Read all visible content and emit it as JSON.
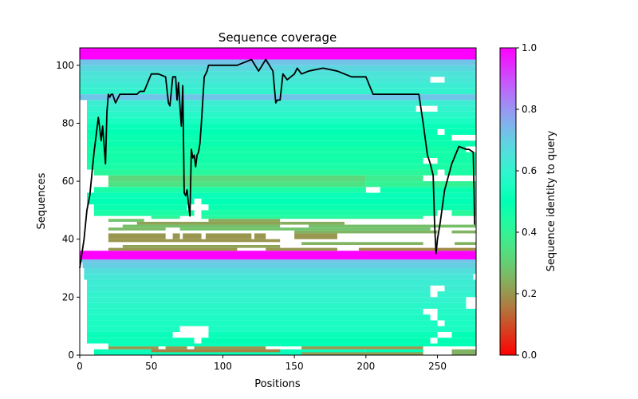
{
  "chart_data": {
    "type": "heatmap",
    "title": "Sequence coverage",
    "xlabel": "Positions",
    "ylabel": "Sequences",
    "xlim": [
      0,
      277
    ],
    "ylim": [
      0,
      106
    ],
    "xticks": [
      0,
      50,
      100,
      150,
      200,
      250
    ],
    "yticks": [
      0,
      20,
      40,
      60,
      80,
      100
    ],
    "grid": false,
    "colorbar": {
      "label": "Sequence identity to query",
      "range": [
        0.0,
        1.0
      ],
      "ticks": [
        "0.0",
        "0.2",
        "0.4",
        "0.6",
        "0.8",
        "1.0"
      ],
      "colormap": "rainbow_r"
    },
    "coverage_line": {
      "color": "#000000",
      "x": [
        0,
        3,
        5,
        7,
        10,
        13,
        15,
        16,
        18,
        19,
        20,
        21,
        22,
        23,
        25,
        28,
        30,
        35,
        40,
        42,
        45,
        50,
        55,
        60,
        62,
        63,
        64,
        65,
        67,
        68,
        69,
        70,
        71,
        72,
        73,
        74,
        75,
        76,
        77,
        78,
        79,
        80,
        81,
        82,
        83,
        84,
        85,
        87,
        89,
        90,
        95,
        100,
        105,
        110,
        115,
        120,
        125,
        130,
        135,
        137,
        138,
        140,
        142,
        145,
        150,
        152,
        155,
        160,
        170,
        180,
        190,
        200,
        205,
        210,
        220,
        230,
        237,
        240,
        243,
        245,
        247,
        248,
        249,
        250,
        252,
        255,
        260,
        265,
        270,
        272,
        275,
        276
      ],
      "y": [
        30,
        40,
        50,
        55,
        70,
        82,
        74,
        79,
        66,
        84,
        90,
        89,
        90,
        90,
        87,
        90,
        90,
        90,
        90,
        91,
        91,
        97,
        97,
        96,
        87,
        86,
        91,
        96,
        96,
        88,
        94,
        86,
        79,
        93,
        56,
        55,
        57,
        52,
        48,
        71,
        68,
        69,
        65,
        69,
        70,
        73,
        80,
        96,
        98,
        100,
        100,
        100,
        100,
        100,
        101,
        102,
        98,
        102,
        98,
        87,
        88,
        88,
        97,
        95,
        97,
        99,
        97,
        98,
        99,
        98,
        96,
        96,
        90,
        90,
        90,
        90,
        90,
        80,
        69,
        66,
        62,
        45,
        35,
        40,
        46,
        57,
        66,
        72,
        71,
        71,
        70,
        45
      ]
    },
    "rows": [
      {
        "y0": 0,
        "y1": 2,
        "segments": [
          [
            15,
            200,
            0.52
          ],
          [
            200,
            240,
            0.5
          ],
          [
            260,
            277,
            0.25
          ]
        ]
      },
      {
        "y0": 0,
        "y1": 2,
        "segments": [
          [
            10,
            15,
            0.5
          ]
        ]
      },
      {
        "y0": 0,
        "y1": 1,
        "segments": [
          [
            155,
            240,
            0.22
          ]
        ]
      },
      {
        "y0": 1,
        "y1": 2,
        "segments": [
          [
            50,
            140,
            0.17
          ]
        ]
      },
      {
        "y0": 2,
        "y1": 3,
        "segments": [
          [
            20,
            55,
            0.2
          ],
          [
            60,
            75,
            0.2
          ],
          [
            80,
            130,
            0.2
          ],
          [
            155,
            240,
            0.2
          ]
        ]
      },
      {
        "y0": 3,
        "y1": 4,
        "segments": [
          [
            20,
            140,
            0.52
          ],
          [
            140,
            277,
            0.5
          ]
        ]
      },
      {
        "y0": 4,
        "y1": 6,
        "segments": [
          [
            5,
            80,
            0.52
          ],
          [
            85,
            245,
            0.5
          ],
          [
            250,
            277,
            0.5
          ]
        ]
      },
      {
        "y0": 6,
        "y1": 8,
        "segments": [
          [
            5,
            65,
            0.52
          ],
          [
            90,
            250,
            0.52
          ],
          [
            260,
            277,
            0.5
          ]
        ]
      },
      {
        "y0": 8,
        "y1": 10,
        "segments": [
          [
            5,
            70,
            0.55
          ],
          [
            90,
            277,
            0.55
          ]
        ]
      },
      {
        "y0": 10,
        "y1": 12,
        "segments": [
          [
            5,
            250,
            0.55
          ],
          [
            255,
            277,
            0.55
          ]
        ]
      },
      {
        "y0": 12,
        "y1": 14,
        "segments": [
          [
            5,
            245,
            0.56
          ],
          [
            250,
            277,
            0.56
          ]
        ]
      },
      {
        "y0": 14,
        "y1": 16,
        "segments": [
          [
            5,
            240,
            0.57
          ],
          [
            250,
            277,
            0.57
          ]
        ]
      },
      {
        "y0": 16,
        "y1": 18,
        "segments": [
          [
            5,
            270,
            0.58
          ]
        ]
      },
      {
        "y0": 18,
        "y1": 20,
        "segments": [
          [
            5,
            270,
            0.6
          ]
        ]
      },
      {
        "y0": 20,
        "y1": 22,
        "segments": [
          [
            5,
            245,
            0.6
          ],
          [
            250,
            277,
            0.6
          ]
        ]
      },
      {
        "y0": 22,
        "y1": 24,
        "segments": [
          [
            5,
            245,
            0.62
          ],
          [
            255,
            277,
            0.62
          ]
        ]
      },
      {
        "y0": 24,
        "y1": 26,
        "segments": [
          [
            5,
            250,
            0.62
          ],
          [
            250,
            277,
            0.62
          ]
        ]
      },
      {
        "y0": 26,
        "y1": 28,
        "segments": [
          [
            3,
            275,
            0.64
          ]
        ]
      },
      {
        "y0": 28,
        "y1": 30,
        "segments": [
          [
            3,
            277,
            0.66
          ]
        ]
      },
      {
        "y0": 30,
        "y1": 32,
        "segments": [
          [
            2,
            277,
            0.7
          ]
        ]
      },
      {
        "y0": 32,
        "y1": 33,
        "segments": [
          [
            1,
            277,
            0.72
          ]
        ]
      },
      {
        "y0": 33,
        "y1": 36,
        "segments": [
          [
            0,
            277,
            1.0
          ]
        ]
      },
      {
        "y0": 36,
        "y1": 37,
        "segments": [
          [
            20,
            110,
            0.2
          ],
          [
            130,
            180,
            0.2
          ],
          [
            195,
            277,
            0.18
          ]
        ]
      },
      {
        "y0": 37,
        "y1": 38,
        "segments": [
          [
            30,
            140,
            0.22
          ]
        ]
      },
      {
        "y0": 38,
        "y1": 39,
        "segments": [
          [
            155,
            240,
            0.25
          ],
          [
            262,
            277,
            0.25
          ]
        ]
      },
      {
        "y0": 39,
        "y1": 40,
        "segments": [
          [
            20,
            140,
            0.2
          ]
        ]
      },
      {
        "y0": 40,
        "y1": 42,
        "segments": [
          [
            20,
            60,
            0.2
          ],
          [
            65,
            70,
            0.2
          ],
          [
            72,
            85,
            0.2
          ],
          [
            88,
            120,
            0.2
          ],
          [
            122,
            130,
            0.2
          ],
          [
            150,
            180,
            0.2
          ]
        ]
      },
      {
        "y0": 42,
        "y1": 43,
        "segments": [
          [
            150,
            250,
            0.25
          ],
          [
            260,
            277,
            0.25
          ]
        ]
      },
      {
        "y0": 43,
        "y1": 44,
        "segments": [
          [
            20,
            60,
            0.26
          ],
          [
            70,
            245,
            0.28
          ]
        ]
      },
      {
        "y0": 44,
        "y1": 45,
        "segments": [
          [
            30,
            140,
            0.27
          ],
          [
            160,
            277,
            0.27
          ]
        ]
      },
      {
        "y0": 45,
        "y1": 46,
        "segments": [
          [
            40,
            140,
            0.22
          ],
          [
            140,
            185,
            0.24
          ]
        ]
      },
      {
        "y0": 46,
        "y1": 47,
        "segments": [
          [
            20,
            45,
            0.28
          ],
          [
            90,
            140,
            0.23
          ]
        ]
      },
      {
        "y0": 47,
        "y1": 48,
        "segments": [
          [
            50,
            70,
            0.4
          ],
          [
            85,
            240,
            0.42
          ]
        ]
      },
      {
        "y0": 48,
        "y1": 50,
        "segments": [
          [
            10,
            80,
            0.45
          ],
          [
            85,
            250,
            0.45
          ],
          [
            260,
            277,
            0.42
          ]
        ]
      },
      {
        "y0": 50,
        "y1": 52,
        "segments": [
          [
            10,
            75,
            0.48
          ],
          [
            90,
            277,
            0.48
          ]
        ]
      },
      {
        "y0": 52,
        "y1": 54,
        "segments": [
          [
            5,
            80,
            0.5
          ],
          [
            85,
            277,
            0.5
          ]
        ]
      },
      {
        "y0": 54,
        "y1": 56,
        "segments": [
          [
            5,
            277,
            0.52
          ]
        ]
      },
      {
        "y0": 56,
        "y1": 58,
        "segments": [
          [
            10,
            200,
            0.45
          ],
          [
            210,
            277,
            0.48
          ]
        ]
      },
      {
        "y0": 58,
        "y1": 60,
        "segments": [
          [
            20,
            200,
            0.35
          ],
          [
            200,
            277,
            0.4
          ]
        ]
      },
      {
        "y0": 60,
        "y1": 62,
        "segments": [
          [
            20,
            200,
            0.32
          ],
          [
            200,
            240,
            0.38
          ]
        ]
      },
      {
        "y0": 62,
        "y1": 64,
        "segments": [
          [
            10,
            250,
            0.42
          ],
          [
            255,
            277,
            0.45
          ]
        ]
      },
      {
        "y0": 64,
        "y1": 66,
        "segments": [
          [
            5,
            277,
            0.45
          ]
        ]
      },
      {
        "y0": 66,
        "y1": 68,
        "segments": [
          [
            5,
            240,
            0.46
          ],
          [
            250,
            277,
            0.46
          ]
        ]
      },
      {
        "y0": 68,
        "y1": 70,
        "segments": [
          [
            5,
            277,
            0.46
          ]
        ]
      },
      {
        "y0": 70,
        "y1": 72,
        "segments": [
          [
            5,
            270,
            0.46
          ]
        ]
      },
      {
        "y0": 72,
        "y1": 74,
        "segments": [
          [
            5,
            277,
            0.48
          ]
        ]
      },
      {
        "y0": 74,
        "y1": 76,
        "segments": [
          [
            5,
            260,
            0.48
          ]
        ]
      },
      {
        "y0": 76,
        "y1": 78,
        "segments": [
          [
            5,
            250,
            0.5
          ],
          [
            255,
            277,
            0.5
          ]
        ]
      },
      {
        "y0": 78,
        "y1": 80,
        "segments": [
          [
            5,
            277,
            0.52
          ]
        ]
      },
      {
        "y0": 80,
        "y1": 82,
        "segments": [
          [
            5,
            277,
            0.55
          ]
        ]
      },
      {
        "y0": 82,
        "y1": 84,
        "segments": [
          [
            5,
            277,
            0.58
          ]
        ]
      },
      {
        "y0": 84,
        "y1": 86,
        "segments": [
          [
            5,
            235,
            0.6
          ],
          [
            250,
            277,
            0.6
          ]
        ]
      },
      {
        "y0": 86,
        "y1": 88,
        "segments": [
          [
            5,
            277,
            0.62
          ]
        ]
      },
      {
        "y0": 88,
        "y1": 90,
        "segments": [
          [
            0,
            277,
            0.72
          ]
        ]
      },
      {
        "y0": 90,
        "y1": 92,
        "segments": [
          [
            0,
            277,
            0.6
          ]
        ]
      },
      {
        "y0": 92,
        "y1": 94,
        "segments": [
          [
            0,
            277,
            0.62
          ]
        ]
      },
      {
        "y0": 94,
        "y1": 96,
        "segments": [
          [
            0,
            245,
            0.64
          ],
          [
            255,
            277,
            0.64
          ]
        ]
      },
      {
        "y0": 96,
        "y1": 98,
        "segments": [
          [
            0,
            277,
            0.65
          ]
        ]
      },
      {
        "y0": 98,
        "y1": 100,
        "segments": [
          [
            0,
            277,
            0.68
          ]
        ]
      },
      {
        "y0": 100,
        "y1": 102,
        "segments": [
          [
            0,
            277,
            0.72
          ]
        ]
      },
      {
        "y0": 102,
        "y1": 106,
        "segments": [
          [
            0,
            277,
            1.0
          ]
        ]
      }
    ]
  }
}
